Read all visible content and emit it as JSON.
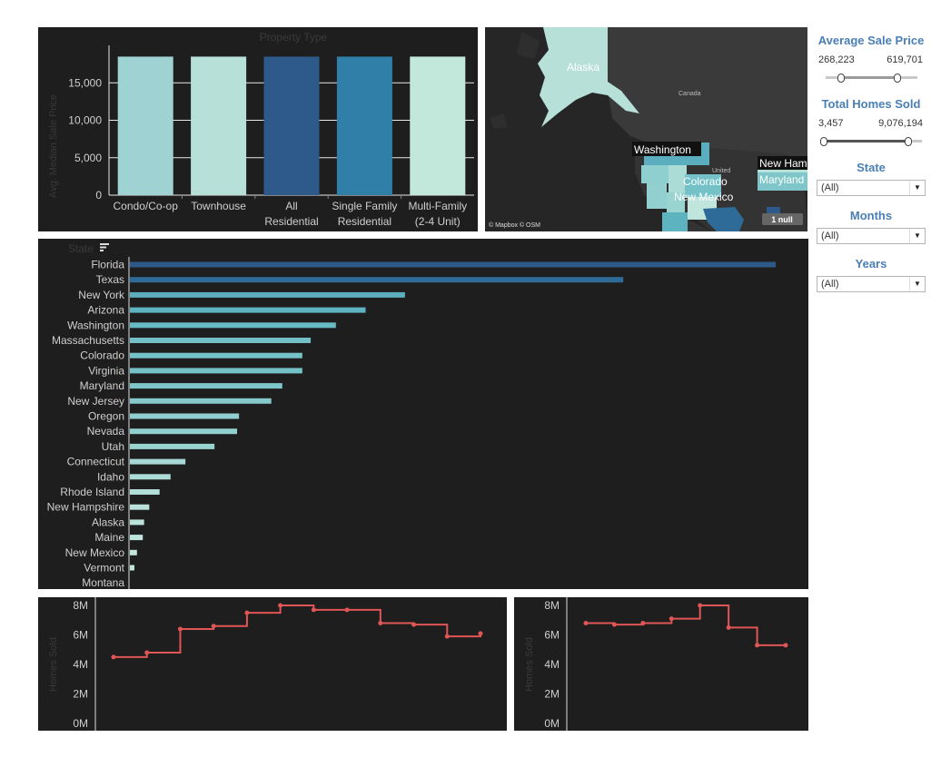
{
  "property_chart": {
    "title": "Property Type",
    "ylabel": "Avg. Median Sale Price",
    "yticks": [
      "15,000",
      "10,000",
      "5,000",
      "0"
    ],
    "bars": [
      {
        "label1": "Condo/Co-op",
        "label2": "",
        "color": "#9fd3d3",
        "value": 18500
      },
      {
        "label1": "Townhouse",
        "label2": "",
        "color": "#b6e0d8",
        "value": 18500
      },
      {
        "label1": "All",
        "label2": "Residential",
        "color": "#2d5a8a",
        "value": 18500
      },
      {
        "label1": "Single Family",
        "label2": "Residential",
        "color": "#2f7fa8",
        "value": 18500
      },
      {
        "label1": "Multi-Family",
        "label2": "(2-4 Unit)",
        "color": "#c2e8dc",
        "value": 18500
      }
    ]
  },
  "map": {
    "labels": {
      "alaska": "Alaska",
      "washington": "Washington",
      "colorado": "Colorado",
      "new_mexico": "New Mexico",
      "new_hampshire": "New Ham",
      "maryland": "Maryland",
      "canada": "Canada",
      "united_states": "United"
    },
    "attribution": "© Mapbox © OSM",
    "null_badge": "1 null"
  },
  "state_chart": {
    "header": "State",
    "max": 100,
    "rows": [
      {
        "state": "Florida",
        "value": 100,
        "color": "#2d5a8a"
      },
      {
        "state": "Texas",
        "value": 76.4,
        "color": "#2e6b98"
      },
      {
        "state": "New York",
        "value": 42.6,
        "color": "#5aaebe"
      },
      {
        "state": "Arizona",
        "value": 36.5,
        "color": "#5db4c0"
      },
      {
        "state": "Washington",
        "value": 31.9,
        "color": "#68bbc4"
      },
      {
        "state": "Massachusetts",
        "value": 28.0,
        "color": "#72c0c6"
      },
      {
        "state": "Colorado",
        "value": 26.7,
        "color": "#74c2c7"
      },
      {
        "state": "Virginia",
        "value": 26.7,
        "color": "#74c2c7"
      },
      {
        "state": "Maryland",
        "value": 23.6,
        "color": "#7ec6c9"
      },
      {
        "state": "New Jersey",
        "value": 21.9,
        "color": "#84c9cb"
      },
      {
        "state": "Oregon",
        "value": 16.9,
        "color": "#90cfcf"
      },
      {
        "state": "Nevada",
        "value": 16.6,
        "color": "#92d0cf"
      },
      {
        "state": "Utah",
        "value": 13.1,
        "color": "#9ad4d1"
      },
      {
        "state": "Connecticut",
        "value": 8.6,
        "color": "#a6d9d5"
      },
      {
        "state": "Idaho",
        "value": 6.3,
        "color": "#acdcd6"
      },
      {
        "state": "Rhode Island",
        "value": 4.6,
        "color": "#b2ded8"
      },
      {
        "state": "New Hampshire",
        "value": 3.0,
        "color": "#b8e1da"
      },
      {
        "state": "Alaska",
        "value": 2.2,
        "color": "#bce3da"
      },
      {
        "state": "Maine",
        "value": 2.0,
        "color": "#bde3db"
      },
      {
        "state": "New Mexico",
        "value": 1.1,
        "color": "#c0e5dc"
      },
      {
        "state": "Vermont",
        "value": 0.7,
        "color": "#c2e6dc"
      },
      {
        "state": "Montana",
        "value": 0.0,
        "color": "#c4e7dd"
      }
    ]
  },
  "line_left": {
    "ylabel": "Homes Sold",
    "yticks": [
      "8M",
      "6M",
      "4M",
      "2M",
      "0M"
    ],
    "values": [
      4.5,
      4.8,
      6.4,
      6.6,
      7.5,
      8.0,
      7.7,
      7.7,
      6.8,
      6.7,
      5.9,
      6.1
    ],
    "color": "#e05555"
  },
  "line_right": {
    "ylabel": "Homes Sold",
    "yticks": [
      "8M",
      "6M",
      "4M",
      "2M",
      "0M"
    ],
    "values": [
      6.8,
      6.7,
      6.8,
      7.1,
      8.0,
      6.5,
      5.3,
      5.3
    ],
    "color": "#e05555"
  },
  "filters": {
    "avg_price": {
      "title": "Average Sale Price",
      "min": "268,223",
      "max": "619,701",
      "low": 0.15,
      "high": 0.8
    },
    "homes_sold": {
      "title": "Total Homes Sold",
      "min": "3,457",
      "max": "9,076,194",
      "low": 0.0,
      "high": 0.88
    },
    "state": {
      "title": "State",
      "value": "(All)"
    },
    "months": {
      "title": "Months",
      "value": "(All)"
    },
    "years": {
      "title": "Years",
      "value": "(All)"
    }
  }
}
